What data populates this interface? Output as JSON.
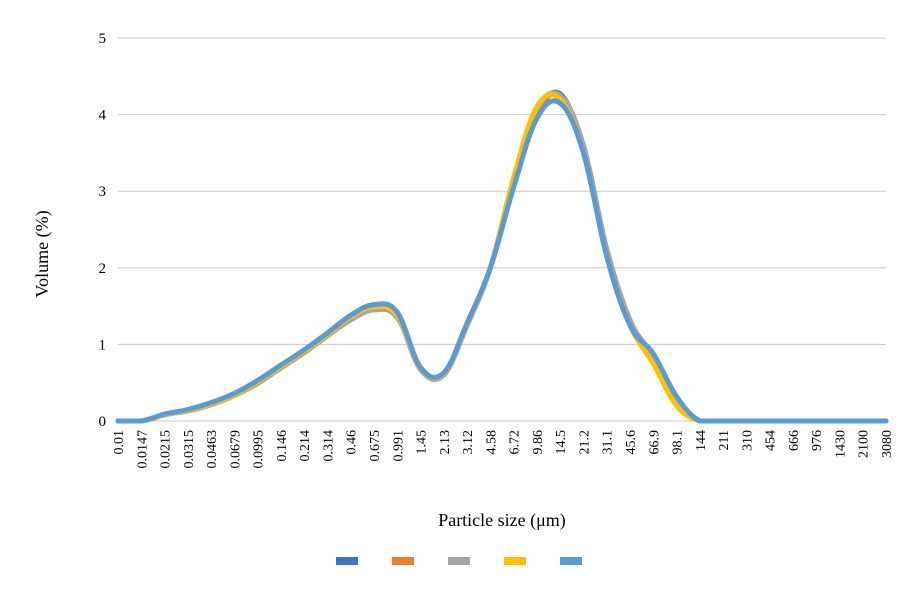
{
  "chart_data": {
    "type": "line",
    "title": "",
    "xlabel": "Particle size (μm)",
    "ylabel": "Volume (%)",
    "ylim": [
      0,
      5
    ],
    "yticks": [
      "0",
      "1",
      "2",
      "3",
      "4",
      "5"
    ],
    "grid": true,
    "legend": "bottom",
    "categories": [
      "0.01",
      "0.0147",
      "0.0215",
      "0.0315",
      "0.0463",
      "0.0679",
      "0.0995",
      "0.146",
      "0.214",
      "0.314",
      "0.46",
      "0.675",
      "0.991",
      "1.45",
      "2.13",
      "3.12",
      "4.58",
      "6.72",
      "9.86",
      "14.5",
      "21.2",
      "31.1",
      "45.6",
      "66.9",
      "98.1",
      "144",
      "211",
      "310",
      "454",
      "666",
      "976",
      "1430",
      "2100",
      "3080"
    ],
    "series": [
      {
        "color": "#4472c4",
        "values": [
          0,
          0,
          0.08,
          0.14,
          0.22,
          0.34,
          0.5,
          0.7,
          0.9,
          1.12,
          1.33,
          1.46,
          1.36,
          0.68,
          0.62,
          1.25,
          2.0,
          3.1,
          4.0,
          4.27,
          3.55,
          2.2,
          1.3,
          0.85,
          0.3,
          0,
          0,
          0,
          0,
          0,
          0,
          0,
          0,
          0
        ]
      },
      {
        "color": "#ed7d31",
        "values": [
          0,
          0,
          0.08,
          0.14,
          0.22,
          0.34,
          0.5,
          0.7,
          0.9,
          1.12,
          1.34,
          1.47,
          1.38,
          0.68,
          0.62,
          1.25,
          2.0,
          3.15,
          4.05,
          4.22,
          3.5,
          2.2,
          1.3,
          0.85,
          0.28,
          0,
          0,
          0,
          0,
          0,
          0,
          0,
          0,
          0
        ]
      },
      {
        "color": "#a5a5a5",
        "values": [
          0,
          0,
          0.08,
          0.13,
          0.21,
          0.33,
          0.49,
          0.69,
          0.89,
          1.11,
          1.32,
          1.45,
          1.35,
          0.67,
          0.6,
          1.25,
          2.0,
          3.15,
          4.07,
          4.25,
          3.6,
          2.25,
          1.32,
          0.84,
          0.28,
          0,
          0,
          0,
          0,
          0,
          0,
          0,
          0,
          0
        ]
      },
      {
        "color": "#ffc000",
        "values": [
          0,
          0,
          0.08,
          0.14,
          0.22,
          0.34,
          0.51,
          0.71,
          0.91,
          1.13,
          1.36,
          1.49,
          1.38,
          0.69,
          0.62,
          1.27,
          2.0,
          3.18,
          4.1,
          4.2,
          3.5,
          2.15,
          1.25,
          0.75,
          0.2,
          0,
          0,
          0,
          0,
          0,
          0,
          0,
          0,
          0
        ]
      },
      {
        "color": "#5b9bd5",
        "values": [
          0,
          0,
          0.09,
          0.15,
          0.24,
          0.36,
          0.53,
          0.73,
          0.93,
          1.15,
          1.38,
          1.52,
          1.42,
          0.7,
          0.63,
          1.28,
          2.0,
          3.05,
          3.95,
          4.15,
          3.5,
          2.15,
          1.25,
          0.88,
          0.32,
          0,
          0,
          0,
          0,
          0,
          0,
          0,
          0,
          0
        ]
      }
    ]
  }
}
